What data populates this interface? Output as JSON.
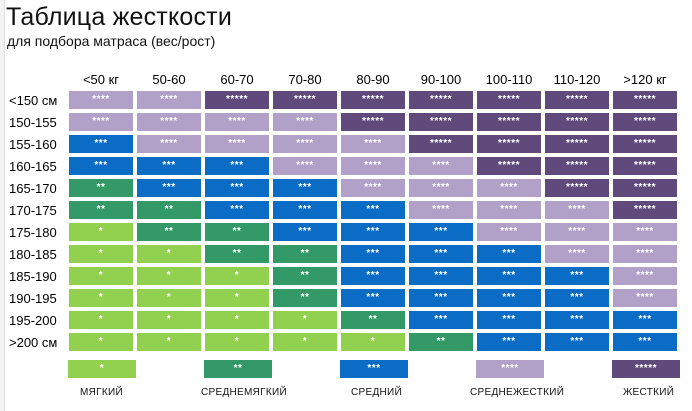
{
  "title": "Таблица жесткости",
  "subtitle": "для подбора матраса (вес/рост)",
  "weights": [
    "<50 кг",
    "50-60",
    "60-70",
    "70-80",
    "80-90",
    "90-100",
    "100-110",
    "110-120",
    ">120 кг"
  ],
  "colors": {
    "1": "#92d050",
    "2": "#339966",
    "3": "#0a6cc4",
    "4": "#b1a0c7",
    "5": "#604a7b"
  },
  "rows": [
    {
      "height": "<150 см",
      "levels": [
        4,
        4,
        5,
        5,
        5,
        5,
        5,
        5,
        5
      ]
    },
    {
      "height": "150-155",
      "levels": [
        4,
        4,
        4,
        4,
        5,
        5,
        5,
        5,
        5
      ]
    },
    {
      "height": "155-160",
      "levels": [
        3,
        4,
        4,
        4,
        4,
        5,
        5,
        5,
        5
      ]
    },
    {
      "height": "160-165",
      "levels": [
        3,
        3,
        3,
        4,
        4,
        4,
        5,
        5,
        5
      ]
    },
    {
      "height": "165-170",
      "levels": [
        2,
        3,
        3,
        3,
        4,
        4,
        4,
        5,
        5
      ]
    },
    {
      "height": "170-175",
      "levels": [
        2,
        2,
        3,
        3,
        3,
        4,
        4,
        4,
        5
      ]
    },
    {
      "height": "175-180",
      "levels": [
        1,
        2,
        2,
        3,
        3,
        3,
        4,
        4,
        4
      ]
    },
    {
      "height": "180-185",
      "levels": [
        1,
        1,
        2,
        2,
        3,
        3,
        3,
        4,
        4
      ]
    },
    {
      "height": "185-190",
      "levels": [
        1,
        1,
        1,
        2,
        3,
        3,
        3,
        3,
        4
      ]
    },
    {
      "height": "190-195",
      "levels": [
        1,
        1,
        1,
        2,
        3,
        3,
        3,
        3,
        4
      ]
    },
    {
      "height": "195-200",
      "levels": [
        1,
        1,
        1,
        1,
        2,
        3,
        3,
        3,
        3
      ]
    },
    {
      "height": ">200 см",
      "levels": [
        1,
        1,
        1,
        1,
        1,
        2,
        3,
        3,
        3
      ]
    }
  ],
  "marks": {
    "1": "*",
    "2": "**",
    "3": "***",
    "4": "****",
    "5": "*****"
  },
  "legend": [
    {
      "level": 1,
      "mark": "*",
      "label": "МЯГКИЙ"
    },
    {
      "level": 2,
      "mark": "**",
      "label": "СРЕДНЕМЯГКИЙ"
    },
    {
      "level": 3,
      "mark": "***",
      "label": "СРЕДНИЙ"
    },
    {
      "level": 4,
      "mark": "****",
      "label": "СРЕДНЕЖЕСТКИЙ"
    },
    {
      "level": 5,
      "mark": "*****",
      "label": "ЖЕСТКИЙ"
    }
  ]
}
